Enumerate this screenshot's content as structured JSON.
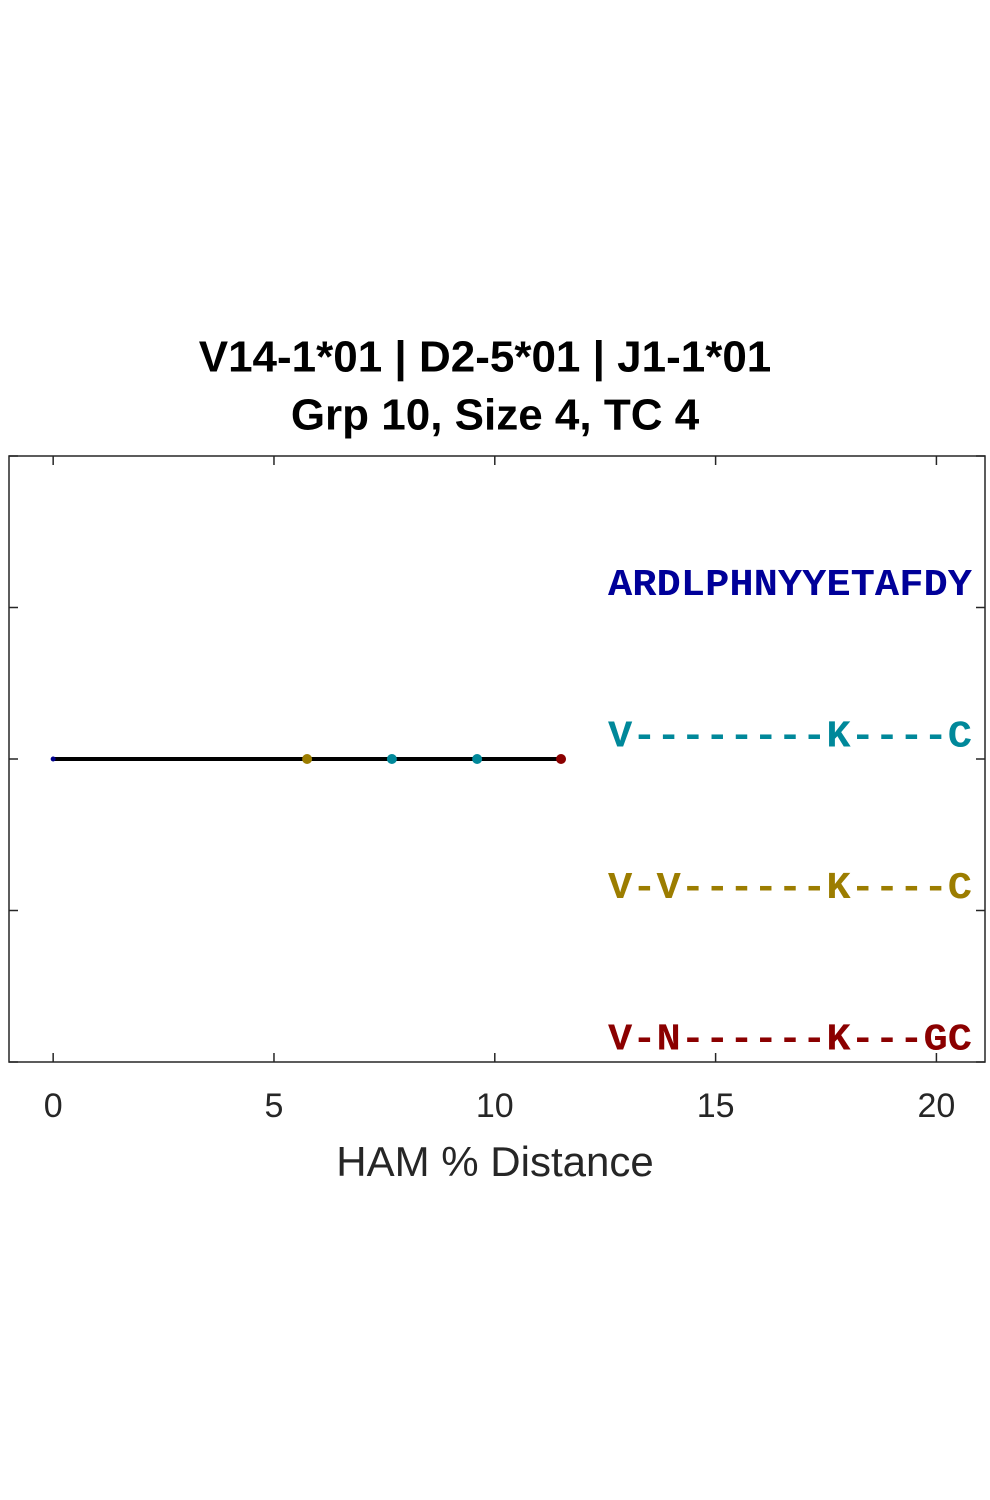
{
  "chart_data": {
    "type": "line",
    "title": [
      "V14-1*01 | D2-5*01 | J1-1*01",
      "Grp 10, Size 4, TC 4"
    ],
    "xlabel": "HAM % Distance",
    "xlim": [
      -1,
      21.1
    ],
    "ylim": [
      0,
      4
    ],
    "xticks": [
      0,
      5,
      10,
      15,
      20
    ],
    "yticks": [
      0,
      1,
      2,
      3,
      4
    ],
    "series": [
      {
        "color": "#000000",
        "x": [
          0,
          11.5
        ],
        "values": [
          2,
          2
        ]
      }
    ],
    "points": {
      "x": [
        0,
        5.75,
        7.67,
        9.6,
        11.5
      ],
      "values": [
        2,
        2,
        2,
        2,
        2
      ],
      "colors": [
        "#00008b",
        "#9c7d00",
        "#00889a",
        "#00889a",
        "#8b0000"
      ]
    },
    "sequences": [
      {
        "text": "ARDLPHNYYETAFDY",
        "color": "#000099"
      },
      {
        "text": "V--------K----C",
        "color": "#00889a"
      },
      {
        "text": "V-V------K----C",
        "color": "#9c7d00"
      },
      {
        "text": "V-N------K---GC",
        "color": "#8b0000"
      }
    ]
  }
}
